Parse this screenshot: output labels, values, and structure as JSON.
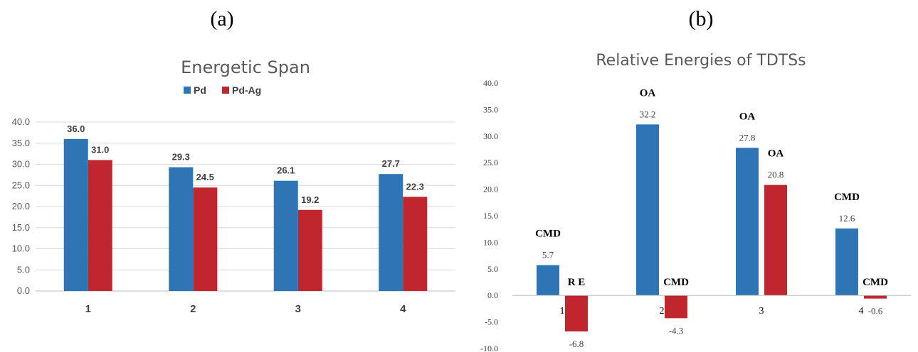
{
  "panels": {
    "a": "(a)",
    "b": "(b)"
  },
  "colors": {
    "blue": "#2e75b6",
    "red": "#c0262d",
    "grid": "#d9d9d9",
    "axis": "#bfbfbf"
  },
  "chart_data": [
    {
      "type": "bar",
      "title": "Energetic Span",
      "categories": [
        "1",
        "2",
        "3",
        "4"
      ],
      "series": [
        {
          "name": "Pd",
          "values": [
            36.0,
            29.3,
            26.1,
            27.7
          ],
          "labels": [
            "36.0",
            "29.3",
            "26.1",
            "27.7"
          ]
        },
        {
          "name": "Pd-Ag",
          "values": [
            31.0,
            24.5,
            19.2,
            22.3
          ],
          "labels": [
            "31.0",
            "24.5",
            "19.2",
            "22.3"
          ]
        }
      ],
      "ylim": [
        0,
        40
      ],
      "yticks": [
        "0.0",
        "5.0",
        "10.0",
        "15.0",
        "20.0",
        "25.0",
        "30.0",
        "35.0",
        "40.0"
      ],
      "grid": true,
      "legend": "top"
    },
    {
      "type": "bar",
      "title": "Relative Energies of TDTSs",
      "categories": [
        "1",
        "2",
        "3",
        "4"
      ],
      "series": [
        {
          "values": [
            5.7,
            32.2,
            27.8,
            12.6
          ],
          "labels": [
            "5.7",
            "32.2",
            "27.8",
            "12.6"
          ],
          "annotations": [
            "CMD",
            "OA",
            "OA",
            "CMD"
          ]
        },
        {
          "values": [
            -6.8,
            -4.3,
            20.8,
            -0.6
          ],
          "labels": [
            "-6.8",
            "-4.3",
            "20.8",
            "-0.6"
          ],
          "annotations": [
            "R E",
            "CMD",
            "OA",
            "CMD"
          ]
        }
      ],
      "ylim": [
        -10,
        40
      ],
      "yticks": [
        "-10.0",
        "-5.0",
        "0.0",
        "5.0",
        "10.0",
        "15.0",
        "20.0",
        "25.0",
        "30.0",
        "35.0",
        "40.0"
      ],
      "grid": false,
      "legend": "none"
    }
  ]
}
